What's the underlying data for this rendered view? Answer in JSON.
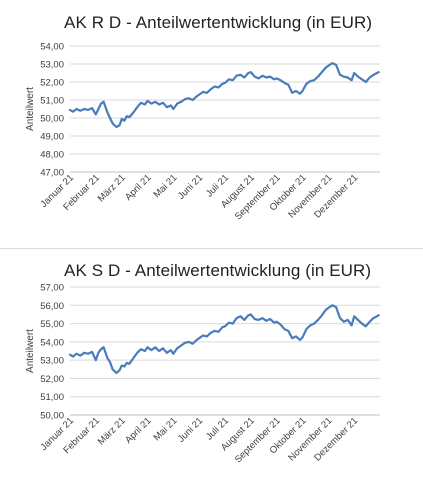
{
  "chart_data": [
    {
      "type": "line",
      "title": "AK R D  -  Anteilwertentwicklung (in EUR)",
      "xlabel": "",
      "ylabel": "Anteilwert",
      "ylim": [
        47.0,
        54.0
      ],
      "yticks": [
        "47,00",
        "48,00",
        "49,00",
        "50,00",
        "51,00",
        "52,00",
        "53,00",
        "54,00"
      ],
      "categories": [
        "Januar 21",
        "Februar 21",
        "März 21",
        "April 21",
        "Mai 21",
        "Juni 21",
        "Juli 21",
        "August 21",
        "September 21",
        "Oktober 21",
        "November 21",
        "Dezember 21"
      ],
      "grid": true,
      "legend": "none",
      "color": "#4a7cbb",
      "series": [
        {
          "x": [
            0,
            0.12,
            0.25,
            0.4,
            0.55,
            0.7,
            0.85,
            1.0,
            1.1,
            1.2,
            1.3,
            1.45,
            1.55,
            1.65,
            1.8,
            1.92,
            2.0,
            2.1,
            2.2,
            2.3,
            2.45,
            2.6,
            2.75,
            2.9,
            3.0,
            3.15,
            3.3,
            3.45,
            3.6,
            3.75,
            3.9,
            4.0,
            4.15,
            4.3,
            4.45,
            4.6,
            4.75,
            4.9,
            5.0,
            5.15,
            5.3,
            5.45,
            5.6,
            5.75,
            5.9,
            6.0,
            6.15,
            6.3,
            6.45,
            6.6,
            6.75,
            6.9,
            7.0,
            7.15,
            7.3,
            7.45,
            7.6,
            7.75,
            7.9,
            8.0,
            8.15,
            8.3,
            8.45,
            8.6,
            8.75,
            8.9,
            9.0,
            9.15,
            9.3,
            9.45,
            9.6,
            9.75,
            9.9,
            10.0,
            10.15,
            10.3,
            10.45,
            10.6,
            10.75,
            10.9,
            11.0,
            11.15,
            11.3,
            11.45,
            11.6,
            11.75,
            11.95
          ],
          "values": [
            50.45,
            50.35,
            50.5,
            50.4,
            50.5,
            50.45,
            50.55,
            50.2,
            50.5,
            50.8,
            50.9,
            50.3,
            50.0,
            49.7,
            49.5,
            49.6,
            49.95,
            49.85,
            50.1,
            50.05,
            50.3,
            50.6,
            50.85,
            50.75,
            50.95,
            50.8,
            50.9,
            50.75,
            50.85,
            50.6,
            50.7,
            50.5,
            50.8,
            50.9,
            51.05,
            51.1,
            51.0,
            51.2,
            51.3,
            51.45,
            51.4,
            51.6,
            51.75,
            51.7,
            51.9,
            51.95,
            52.15,
            52.1,
            52.35,
            52.4,
            52.25,
            52.5,
            52.55,
            52.3,
            52.2,
            52.35,
            52.25,
            52.3,
            52.15,
            52.2,
            52.1,
            51.95,
            51.85,
            51.4,
            51.5,
            51.35,
            51.5,
            51.9,
            52.05,
            52.1,
            52.3,
            52.55,
            52.8,
            52.9,
            53.05,
            52.95,
            52.4,
            52.3,
            52.25,
            52.1,
            52.5,
            52.3,
            52.15,
            52.0,
            52.25,
            52.4,
            52.55
          ]
        }
      ]
    },
    {
      "type": "line",
      "title": "AK S D  -  Anteilwertentwicklung (in EUR)",
      "xlabel": "",
      "ylabel": "Anteilwert",
      "ylim": [
        50.0,
        57.0
      ],
      "yticks": [
        "50,00",
        "51,00",
        "52,00",
        "53,00",
        "54,00",
        "55,00",
        "56,00",
        "57,00"
      ],
      "categories": [
        "Januar 21",
        "Februar 21",
        "März 21",
        "April 21",
        "Mai 21",
        "Juni 21",
        "Juli 21",
        "August 21",
        "September 21",
        "Oktober 21",
        "November 21",
        "Dezember 21"
      ],
      "grid": true,
      "legend": "none",
      "color": "#4a7cbb",
      "series": [
        {
          "x": [
            0,
            0.12,
            0.25,
            0.4,
            0.55,
            0.7,
            0.85,
            1.0,
            1.1,
            1.2,
            1.3,
            1.45,
            1.55,
            1.65,
            1.8,
            1.92,
            2.0,
            2.1,
            2.2,
            2.3,
            2.45,
            2.6,
            2.75,
            2.9,
            3.0,
            3.15,
            3.3,
            3.45,
            3.6,
            3.75,
            3.9,
            4.0,
            4.15,
            4.3,
            4.45,
            4.6,
            4.75,
            4.9,
            5.0,
            5.15,
            5.3,
            5.45,
            5.6,
            5.75,
            5.9,
            6.0,
            6.15,
            6.3,
            6.45,
            6.6,
            6.75,
            6.9,
            7.0,
            7.15,
            7.3,
            7.45,
            7.6,
            7.75,
            7.9,
            8.0,
            8.15,
            8.3,
            8.45,
            8.6,
            8.75,
            8.9,
            9.0,
            9.15,
            9.3,
            9.45,
            9.6,
            9.75,
            9.9,
            10.0,
            10.15,
            10.3,
            10.45,
            10.6,
            10.75,
            10.9,
            11.0,
            11.15,
            11.3,
            11.45,
            11.6,
            11.75,
            11.95
          ],
          "values": [
            53.3,
            53.2,
            53.35,
            53.25,
            53.4,
            53.35,
            53.45,
            53.0,
            53.4,
            53.6,
            53.7,
            53.1,
            52.9,
            52.5,
            52.3,
            52.45,
            52.7,
            52.65,
            52.85,
            52.8,
            53.1,
            53.4,
            53.6,
            53.5,
            53.7,
            53.55,
            53.7,
            53.5,
            53.65,
            53.4,
            53.55,
            53.35,
            53.65,
            53.8,
            53.95,
            54.0,
            53.9,
            54.1,
            54.2,
            54.35,
            54.3,
            54.5,
            54.6,
            54.55,
            54.8,
            54.85,
            55.05,
            55.0,
            55.3,
            55.4,
            55.2,
            55.45,
            55.5,
            55.25,
            55.2,
            55.3,
            55.15,
            55.25,
            55.05,
            55.1,
            54.95,
            54.7,
            54.6,
            54.2,
            54.3,
            54.1,
            54.25,
            54.7,
            54.9,
            55.0,
            55.2,
            55.45,
            55.75,
            55.85,
            56.0,
            55.9,
            55.3,
            55.1,
            55.2,
            54.9,
            55.4,
            55.2,
            55.0,
            54.85,
            55.1,
            55.3,
            55.45
          ]
        }
      ]
    }
  ]
}
